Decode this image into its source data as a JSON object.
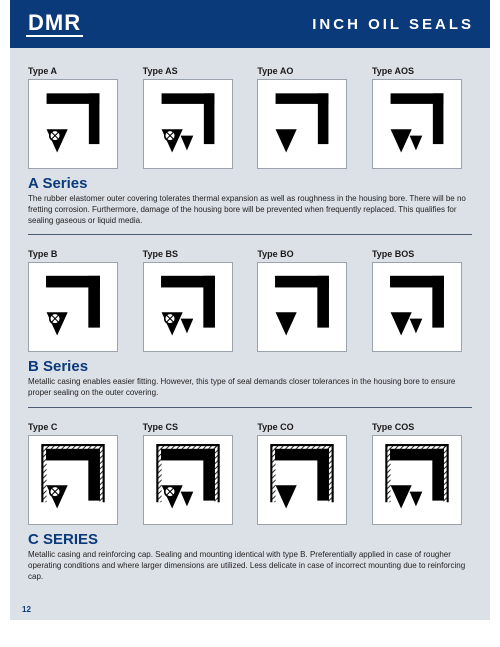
{
  "header": {
    "logo": "DMR",
    "title": "INCH OIL SEALS"
  },
  "page_number": "12",
  "colors": {
    "header_bg": "#0b3a7a",
    "page_bg": "#dce1e8",
    "box_bg": "#ffffff",
    "box_border": "#9aa2ad",
    "title_color": "#0b3a7a",
    "text_color": "#222222"
  },
  "series": [
    {
      "title": "A Series",
      "desc": "The rubber elastomer outer covering tolerates thermal expansion as well as roughness in the housing bore. There will be no fretting corrosion. Furthermore, damage of the housing bore will be prevented when frequently replaced. This qualifies for sealing gaseous or liquid media.",
      "types": [
        {
          "label": "Type A",
          "spring": true,
          "dust": false,
          "cap": false,
          "metal": false
        },
        {
          "label": "Type AS",
          "spring": true,
          "dust": true,
          "cap": false,
          "metal": false
        },
        {
          "label": "Type AO",
          "spring": false,
          "dust": false,
          "cap": false,
          "metal": false
        },
        {
          "label": "Type AOS",
          "spring": false,
          "dust": true,
          "cap": false,
          "metal": false
        }
      ]
    },
    {
      "title": "B Series",
      "desc": "Metallic casing enables easier fitting. However, this type of seal demands closer tolerances in the housing bore to ensure proper sealing on the outer covering.",
      "types": [
        {
          "label": "Type B",
          "spring": true,
          "dust": false,
          "cap": false,
          "metal": true
        },
        {
          "label": "Type BS",
          "spring": true,
          "dust": true,
          "cap": false,
          "metal": true
        },
        {
          "label": "Type BO",
          "spring": false,
          "dust": false,
          "cap": false,
          "metal": true
        },
        {
          "label": "Type BOS",
          "spring": false,
          "dust": true,
          "cap": false,
          "metal": true
        }
      ]
    },
    {
      "title": "C SERIES",
      "desc": "Metallic casing and reinforcing cap. Sealing and mounting identical with type B. Preferentially applied in case of rougher operating conditions and where larger dimensions are utilized. Less delicate in case of incorrect mounting due to reinforcing cap.",
      "types": [
        {
          "label": "Type C",
          "spring": true,
          "dust": false,
          "cap": true,
          "metal": true
        },
        {
          "label": "Type CS",
          "spring": true,
          "dust": true,
          "cap": true,
          "metal": true
        },
        {
          "label": "Type CO",
          "spring": false,
          "dust": false,
          "cap": true,
          "metal": true
        },
        {
          "label": "Type COS",
          "spring": false,
          "dust": true,
          "cap": true,
          "metal": true
        }
      ]
    }
  ]
}
